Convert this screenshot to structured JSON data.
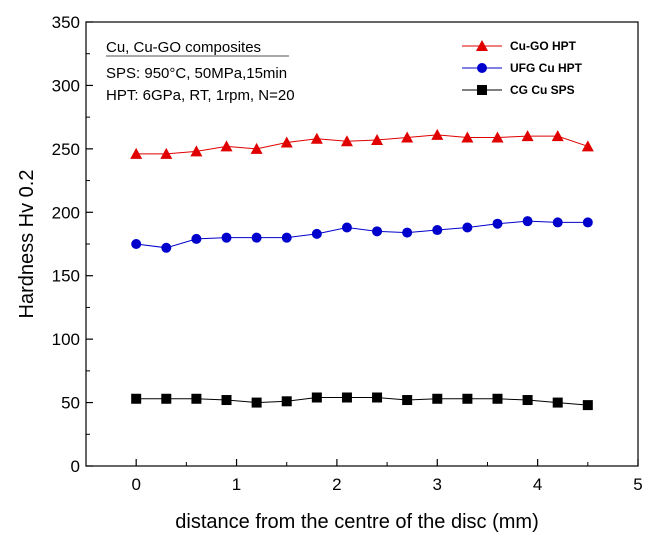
{
  "chart_data": {
    "type": "scatter",
    "title": "",
    "xlabel": "distance from the centre of the disc (mm)",
    "ylabel": "Hardness Hv 0.2",
    "xlim": [
      -0.5,
      5
    ],
    "ylim": [
      0,
      350
    ],
    "x_ticks": [
      "0",
      "1",
      "2",
      "3",
      "4",
      "5"
    ],
    "y_ticks": [
      "0",
      "50",
      "100",
      "150",
      "200",
      "250",
      "300",
      "350"
    ],
    "grid": false,
    "legend_position": "top-right",
    "annotation": {
      "heading": "Cu, Cu-GO composites",
      "lines": [
        "SPS: 950°C, 50MPa,15min",
        "HPT: 6GPa, RT, 1rpm, N=20"
      ]
    },
    "x": [
      0,
      0.3,
      0.6,
      0.9,
      1.2,
      1.5,
      1.8,
      2.1,
      2.4,
      2.7,
      3.0,
      3.3,
      3.6,
      3.9,
      4.2,
      4.5
    ],
    "series": [
      {
        "name": "Cu-GO HPT",
        "marker": "triangle",
        "color": "#e00000",
        "values": [
          246,
          246,
          248,
          252,
          250,
          255,
          258,
          256,
          257,
          259,
          261,
          259,
          259,
          260,
          260,
          252
        ]
      },
      {
        "name": "UFG Cu HPT",
        "marker": "circle",
        "color": "#0000cc",
        "values": [
          175,
          172,
          179,
          180,
          180,
          180,
          183,
          188,
          185,
          184,
          186,
          188,
          191,
          193,
          192,
          192
        ]
      },
      {
        "name": "CG Cu SPS",
        "marker": "square",
        "color": "#000000",
        "values": [
          53,
          53,
          53,
          52,
          50,
          51,
          54,
          54,
          54,
          52,
          53,
          53,
          53,
          52,
          50,
          48
        ]
      }
    ]
  }
}
